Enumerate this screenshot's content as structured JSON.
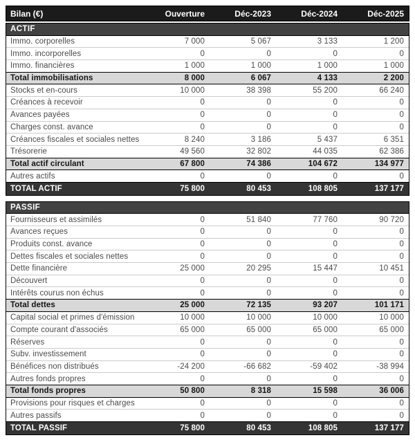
{
  "header": {
    "title": "Bilan (€)",
    "columns": [
      "Ouverture",
      "Déc-2023",
      "Déc-2024",
      "Déc-2025"
    ]
  },
  "colors": {
    "header_bg": "#1b1b1b",
    "section_bg": "#424242",
    "subtotal_bg": "#d8d8d8",
    "grandtotal_bg": "#343434",
    "row_divider": "#cbcbcb",
    "text": "#4a4a4a"
  },
  "sections": [
    {
      "name": "ACTIF",
      "rows": [
        {
          "type": "section",
          "label": "ACTIF",
          "values": [
            "",
            "",
            "",
            ""
          ]
        },
        {
          "type": "data",
          "label": "Immo. corporelles",
          "values": [
            "7 000",
            "5 067",
            "3 133",
            "1 200"
          ]
        },
        {
          "type": "data",
          "label": "Immo. incorporelles",
          "values": [
            "0",
            "0",
            "0",
            "0"
          ]
        },
        {
          "type": "data",
          "label": "Immo. financières",
          "values": [
            "1 000",
            "1 000",
            "1 000",
            "1 000"
          ]
        },
        {
          "type": "subtotal",
          "label": "Total immobilisations",
          "values": [
            "8 000",
            "6 067",
            "4 133",
            "2 200"
          ]
        },
        {
          "type": "data",
          "label": "Stocks et en-cours",
          "values": [
            "10 000",
            "38 398",
            "55 200",
            "66 240"
          ]
        },
        {
          "type": "data",
          "label": "Créances à recevoir",
          "values": [
            "0",
            "0",
            "0",
            "0"
          ]
        },
        {
          "type": "data",
          "label": "Avances payées",
          "values": [
            "0",
            "0",
            "0",
            "0"
          ]
        },
        {
          "type": "data",
          "label": "Charges const. avance",
          "values": [
            "0",
            "0",
            "0",
            "0"
          ]
        },
        {
          "type": "data",
          "label": "Créances fiscales et sociales nettes",
          "values": [
            "8 240",
            "3 186",
            "5 437",
            "6 351"
          ]
        },
        {
          "type": "data",
          "label": "Trésorerie",
          "values": [
            "49 560",
            "32 802",
            "44 035",
            "62 386"
          ]
        },
        {
          "type": "subtotal",
          "label": "Total actif circulant",
          "values": [
            "67 800",
            "74 386",
            "104 672",
            "134 977"
          ]
        },
        {
          "type": "data",
          "label": "Autres actifs",
          "values": [
            "0",
            "0",
            "0",
            "0"
          ]
        },
        {
          "type": "grandtotal",
          "label": "TOTAL ACTIF",
          "values": [
            "75 800",
            "80 453",
            "108 805",
            "137 177"
          ]
        }
      ]
    },
    {
      "name": "PASSIF",
      "rows": [
        {
          "type": "section",
          "label": "PASSIF",
          "values": [
            "",
            "",
            "",
            ""
          ]
        },
        {
          "type": "data",
          "label": "Fournisseurs et assimilés",
          "values": [
            "0",
            "51 840",
            "77 760",
            "90 720"
          ]
        },
        {
          "type": "data",
          "label": "Avances reçues",
          "values": [
            "0",
            "0",
            "0",
            "0"
          ]
        },
        {
          "type": "data",
          "label": "Produits const. avance",
          "values": [
            "0",
            "0",
            "0",
            "0"
          ]
        },
        {
          "type": "data",
          "label": "Dettes fiscales et sociales nettes",
          "values": [
            "0",
            "0",
            "0",
            "0"
          ]
        },
        {
          "type": "data",
          "label": "Dette financière",
          "values": [
            "25 000",
            "20 295",
            "15 447",
            "10 451"
          ]
        },
        {
          "type": "data",
          "label": "Découvert",
          "values": [
            "0",
            "0",
            "0",
            "0"
          ]
        },
        {
          "type": "data",
          "label": "Intérêts courus non échus",
          "values": [
            "0",
            "0",
            "0",
            "0"
          ]
        },
        {
          "type": "subtotal",
          "label": "Total dettes",
          "values": [
            "25 000",
            "72 135",
            "93 207",
            "101 171"
          ]
        },
        {
          "type": "data",
          "label": "Capital social et primes d'émission",
          "values": [
            "10 000",
            "10 000",
            "10 000",
            "10 000"
          ]
        },
        {
          "type": "data",
          "label": "Compte courant d'associés",
          "values": [
            "65 000",
            "65 000",
            "65 000",
            "65 000"
          ]
        },
        {
          "type": "data",
          "label": "Réserves",
          "values": [
            "0",
            "0",
            "0",
            "0"
          ]
        },
        {
          "type": "data",
          "label": "Subv. investissement",
          "values": [
            "0",
            "0",
            "0",
            "0"
          ]
        },
        {
          "type": "data",
          "label": "Bénéfices non distribués",
          "values": [
            "-24 200",
            "-66 682",
            "-59 402",
            "-38 994"
          ]
        },
        {
          "type": "data",
          "label": "Autres fonds propres",
          "values": [
            "0",
            "0",
            "0",
            "0"
          ]
        },
        {
          "type": "subtotal",
          "label": "Total fonds propres",
          "values": [
            "50 800",
            "8 318",
            "15 598",
            "36 006"
          ]
        },
        {
          "type": "data",
          "label": "Provisions pour risques et charges",
          "values": [
            "0",
            "0",
            "0",
            "0"
          ]
        },
        {
          "type": "data",
          "label": "Autres passifs",
          "values": [
            "0",
            "0",
            "0",
            "0"
          ]
        },
        {
          "type": "grandtotal",
          "label": "TOTAL PASSIF",
          "values": [
            "75 800",
            "80 453",
            "108 805",
            "137 177"
          ]
        }
      ]
    }
  ]
}
